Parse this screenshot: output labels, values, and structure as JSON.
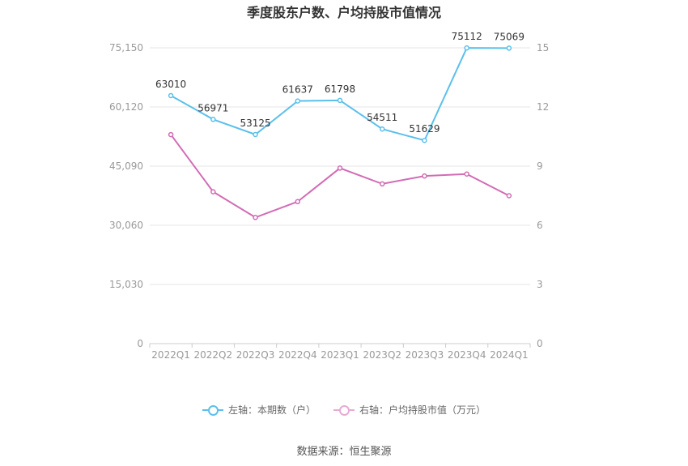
{
  "chart_data": {
    "type": "line",
    "title": "季度股东户数、户均持股市值情况",
    "categories": [
      "2022Q1",
      "2022Q2",
      "2022Q3",
      "2022Q4",
      "2023Q1",
      "2023Q2",
      "2023Q3",
      "2023Q4",
      "2024Q1"
    ],
    "left_axis": {
      "ticks": [
        "0",
        "15,030",
        "30,060",
        "45,090",
        "60,120",
        "75,150"
      ],
      "ylim": [
        0,
        75150
      ]
    },
    "right_axis": {
      "ticks": [
        "0",
        "3",
        "6",
        "9",
        "12",
        "15"
      ],
      "ylim": [
        0,
        15
      ]
    },
    "grid": true,
    "legend_position": "bottom",
    "series": [
      {
        "name": "左轴：本期数（户）",
        "axis": "left",
        "color": "#5bc0eb",
        "values": [
          63010,
          56971,
          53125,
          61637,
          61798,
          54511,
          51629,
          75112,
          75069
        ],
        "labels": [
          "63010",
          "56971",
          "53125",
          "61637",
          "61798",
          "54511",
          "51629",
          "75112",
          "75069"
        ]
      },
      {
        "name": "右轴：户均持股市值（万元）",
        "axis": "right",
        "color": "#d36bb5",
        "values": [
          10.6,
          7.7,
          6.4,
          7.2,
          8.9,
          8.1,
          8.5,
          8.6,
          7.5
        ]
      }
    ]
  },
  "source_text": "数据来源：恒生聚源"
}
